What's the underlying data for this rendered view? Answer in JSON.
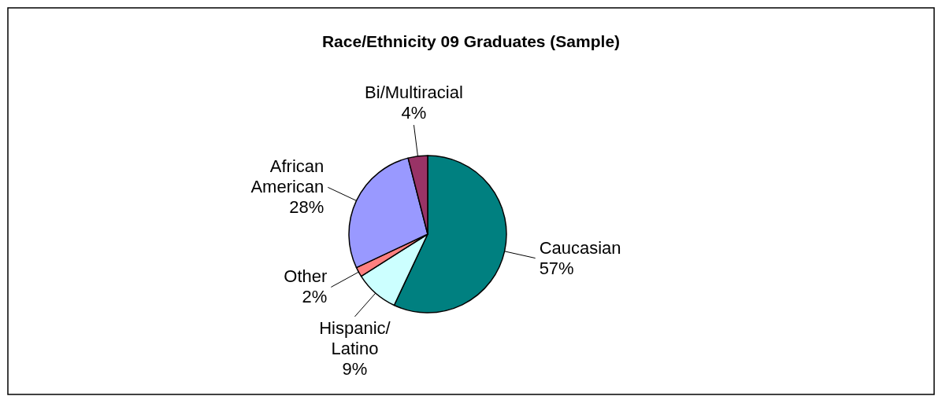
{
  "chart_data": {
    "type": "pie",
    "title": "Race/Ethnicity 09 Graduates (Sample)",
    "categories": [
      "Caucasian",
      "Hispanic/ Latino",
      "Other",
      "African American",
      "Bi/Multiracial"
    ],
    "values": [
      57,
      9,
      2,
      28,
      4
    ],
    "colors": [
      "#008080",
      "#ccffff",
      "#ff8080",
      "#9999ff",
      "#993366"
    ],
    "value_labels": [
      "57%",
      "9%",
      "2%",
      "28%",
      "4%"
    ]
  }
}
